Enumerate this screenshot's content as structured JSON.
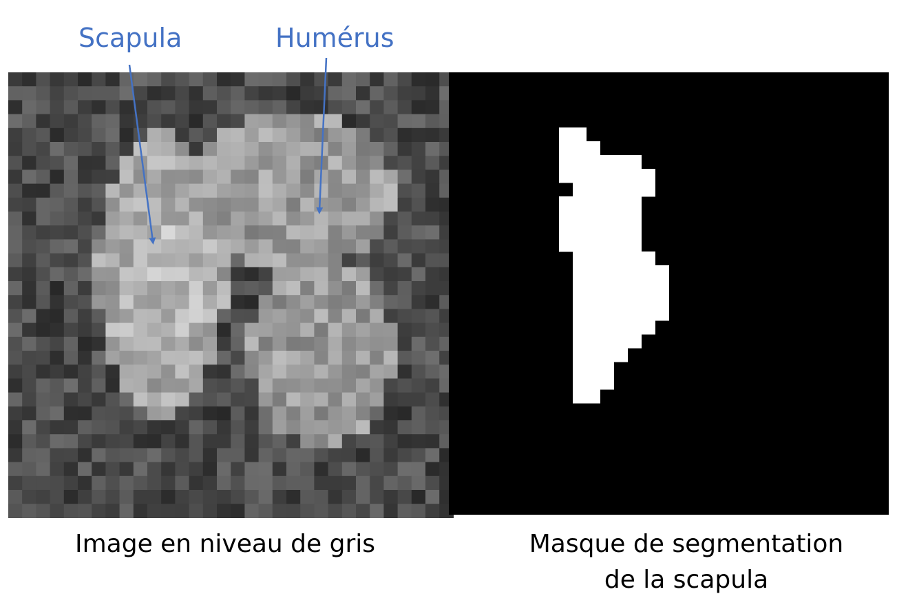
{
  "annotations": {
    "scapula_label": "Scapula",
    "humerus_label": "Humérus"
  },
  "captions": {
    "grayscale": "Image en niveau de gris",
    "mask_line1": "Masque de segmentation",
    "mask_line2": "de la scapula"
  },
  "colors": {
    "annotation": "#4472C4",
    "mask_background": "#000000",
    "mask_foreground": "#ffffff"
  }
}
